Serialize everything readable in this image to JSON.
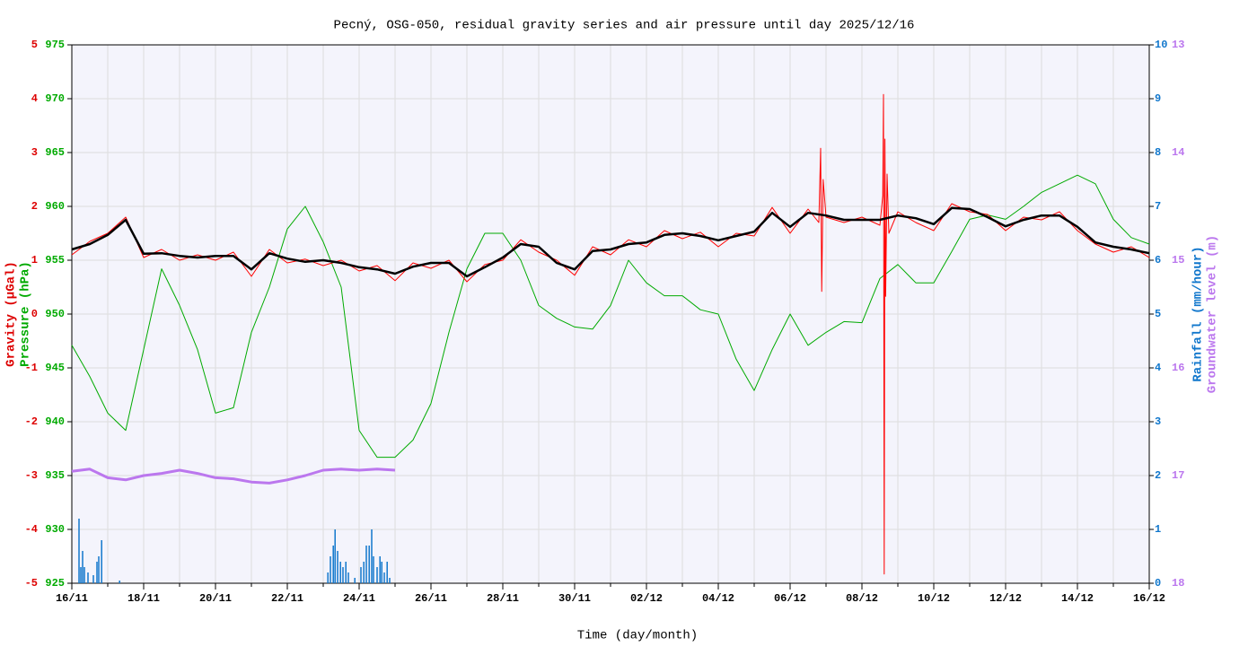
{
  "chart_data": {
    "type": "line",
    "title": "Pecný, OSG-050, residual gravity series and air pressure until day 2025/12/16",
    "xlabel": "Time (day/month)",
    "xlim": [
      0,
      30
    ],
    "xticks": [
      {
        "value": 0,
        "label": "16/11"
      },
      {
        "value": 2,
        "label": "18/11"
      },
      {
        "value": 4,
        "label": "20/11"
      },
      {
        "value": 6,
        "label": "22/11"
      },
      {
        "value": 8,
        "label": "24/11"
      },
      {
        "value": 10,
        "label": "26/11"
      },
      {
        "value": 12,
        "label": "28/11"
      },
      {
        "value": 14,
        "label": "30/11"
      },
      {
        "value": 16,
        "label": "02/12"
      },
      {
        "value": 18,
        "label": "04/12"
      },
      {
        "value": 20,
        "label": "06/12"
      },
      {
        "value": 22,
        "label": "08/12"
      },
      {
        "value": 24,
        "label": "10/12"
      },
      {
        "value": 26,
        "label": "12/12"
      },
      {
        "value": 28,
        "label": "14/12"
      },
      {
        "value": 30,
        "label": "16/12"
      }
    ],
    "xminorticks": [
      0,
      1,
      2,
      3,
      4,
      5,
      6,
      7,
      8,
      9,
      10,
      11,
      12,
      13,
      14,
      15,
      16,
      17,
      18,
      19,
      20,
      21,
      22,
      23,
      24,
      25,
      26,
      27,
      28,
      29,
      30
    ],
    "grid": true,
    "ylabel": "Gravity (µGal)",
    "ycolor": "#dd0000",
    "ylim": [
      -5,
      5
    ],
    "yticks": [
      -5,
      -4,
      -3,
      -2,
      -1,
      0,
      1,
      2,
      3,
      4,
      5
    ],
    "y2label": "Pressure (hPa)",
    "y2color": "#00aa00",
    "y2lim": [
      925,
      975
    ],
    "y2ticks": [
      925,
      930,
      935,
      940,
      945,
      950,
      955,
      960,
      965,
      970,
      975
    ],
    "y3label": "Rainfall (mm/hour)",
    "y3color": "#1177cc",
    "y3lim": [
      0,
      10
    ],
    "y3ticks": [
      0,
      1,
      2,
      3,
      4,
      5,
      6,
      7,
      8,
      9,
      10
    ],
    "y4label": "Groundwater level (m)",
    "y4color": "#bb77ee",
    "y4lim": [
      18,
      13
    ],
    "y4ticks": [
      13,
      14,
      15,
      16,
      17,
      18
    ],
    "x": [
      0,
      0.5,
      1,
      1.5,
      2,
      2.5,
      3,
      3.5,
      4,
      4.5,
      5,
      5.5,
      6,
      6.5,
      7,
      7.5,
      8,
      8.5,
      9,
      9.5,
      10,
      10.5,
      11,
      11.5,
      12,
      12.5,
      13,
      13.5,
      14,
      14.5,
      15,
      15.5,
      16,
      16.5,
      17,
      17.5,
      18,
      18.5,
      19,
      19.5,
      20,
      20.5,
      21,
      21.5,
      22,
      22.5,
      23,
      23.5,
      24,
      24.5,
      25,
      25.5,
      26,
      26.5,
      27,
      27.5,
      28,
      28.5,
      29,
      29.5,
      30
    ],
    "series": [
      {
        "kind": "bar",
        "axis": "y3",
        "color": "#1177cc",
        "x": [
          0.2,
          0.25,
          0.3,
          0.35,
          0.45,
          0.6,
          0.7,
          0.75,
          0.83,
          1.33,
          7.13,
          7.2,
          7.28,
          7.33,
          7.4,
          7.48,
          7.55,
          7.63,
          7.7,
          7.88,
          8.05,
          8.13,
          8.2,
          8.28,
          8.35,
          8.4,
          8.5,
          8.58,
          8.63,
          8.7,
          8.78,
          8.85
        ],
        "values": [
          1.2,
          0.3,
          0.6,
          0.3,
          0.2,
          0.15,
          0.4,
          0.5,
          0.8,
          0.05,
          0.2,
          0.5,
          0.7,
          1.0,
          0.6,
          0.4,
          0.3,
          0.4,
          0.2,
          0.1,
          0.3,
          0.4,
          0.7,
          0.7,
          1.0,
          0.5,
          0.3,
          0.5,
          0.4,
          0.2,
          0.4,
          0.1
        ]
      },
      {
        "kind": "line",
        "axis": "y4",
        "color": "#bb77ee",
        "width": 3,
        "x": [
          0,
          0.5,
          1,
          1.5,
          2,
          2.5,
          3,
          3.5,
          4,
          4.5,
          5,
          5.5,
          6,
          6.5,
          7,
          7.5,
          8,
          8.5,
          9
        ],
        "values": [
          16.96,
          16.94,
          17.02,
          17.04,
          17.0,
          16.98,
          16.95,
          16.98,
          17.02,
          17.03,
          17.06,
          17.07,
          17.04,
          17.0,
          16.95,
          16.94,
          16.95,
          16.94,
          16.95
        ]
      },
      {
        "kind": "line",
        "axis": "y2",
        "color": "#00aa00",
        "width": 1,
        "values": [
          947.1,
          944.2,
          940.8,
          939.2,
          946.7,
          954.2,
          950.8,
          946.7,
          940.8,
          941.3,
          948.3,
          952.5,
          957.9,
          960.0,
          956.7,
          952.5,
          939.2,
          936.7,
          936.7,
          938.3,
          941.7,
          948.3,
          954.2,
          957.5,
          957.5,
          955.0,
          950.8,
          949.6,
          948.8,
          948.6,
          950.8,
          955.0,
          952.9,
          951.7,
          951.7,
          950.4,
          950.0,
          945.8,
          942.9,
          946.7,
          950.0,
          947.1,
          948.3,
          949.3,
          949.2,
          953.3,
          954.6,
          952.9,
          952.9,
          955.8,
          958.8,
          959.2,
          958.8,
          960.0,
          961.3,
          962.1,
          962.9,
          962.1,
          958.8,
          957.1,
          956.5
        ]
      },
      {
        "kind": "line",
        "axis": "y",
        "color": "#ff0000",
        "width": 1,
        "x": [
          0,
          0.5,
          1,
          1.5,
          2,
          2.5,
          3,
          3.5,
          4,
          4.5,
          5,
          5.5,
          6,
          6.5,
          7,
          7.5,
          8,
          8.5,
          9,
          9.5,
          10,
          10.5,
          11,
          11.5,
          12,
          12.5,
          13,
          13.5,
          14,
          14.5,
          15,
          15.5,
          16,
          16.5,
          17,
          17.5,
          18,
          18.5,
          19,
          19.5,
          20,
          20.5,
          20.8,
          20.85,
          20.88,
          20.92,
          21,
          21.5,
          22,
          22.5,
          22.58,
          22.6,
          22.62,
          22.64,
          22.66,
          22.7,
          22.75,
          23,
          23.5,
          24,
          24.5,
          25,
          25.5,
          26,
          26.5,
          27,
          27.5,
          28,
          28.5,
          29,
          29.5,
          30
        ],
        "values": [
          1.1,
          1.35,
          1.5,
          1.8,
          1.05,
          1.2,
          1.0,
          1.1,
          1.0,
          1.15,
          0.7,
          1.2,
          0.95,
          1.02,
          0.9,
          1.0,
          0.8,
          0.9,
          0.62,
          0.95,
          0.85,
          1.0,
          0.6,
          0.92,
          1.0,
          1.38,
          1.15,
          1.0,
          0.72,
          1.25,
          1.1,
          1.38,
          1.25,
          1.55,
          1.4,
          1.52,
          1.25,
          1.5,
          1.45,
          1.98,
          1.5,
          1.95,
          1.7,
          3.08,
          0.42,
          2.5,
          1.8,
          1.7,
          1.8,
          1.65,
          2.2,
          4.08,
          -4.83,
          3.25,
          0.33,
          2.6,
          1.5,
          1.9,
          1.7,
          1.55,
          2.05,
          1.9,
          1.85,
          1.55,
          1.8,
          1.75,
          1.9,
          1.55,
          1.3,
          1.15,
          1.25,
          1.05
        ]
      },
      {
        "kind": "line",
        "axis": "y",
        "color": "#000000",
        "width": 2.5,
        "values": [
          1.2,
          1.3,
          1.47,
          1.75,
          1.12,
          1.13,
          1.08,
          1.05,
          1.08,
          1.08,
          0.83,
          1.13,
          1.03,
          0.97,
          1.0,
          0.95,
          0.87,
          0.83,
          0.75,
          0.88,
          0.95,
          0.95,
          0.7,
          0.87,
          1.05,
          1.3,
          1.25,
          0.95,
          0.83,
          1.17,
          1.2,
          1.3,
          1.33,
          1.47,
          1.5,
          1.45,
          1.37,
          1.45,
          1.53,
          1.88,
          1.62,
          1.88,
          1.83,
          1.75,
          1.75,
          1.75,
          1.83,
          1.78,
          1.67,
          1.97,
          1.95,
          1.8,
          1.63,
          1.75,
          1.83,
          1.83,
          1.62,
          1.33,
          1.25,
          1.2,
          1.13
        ]
      }
    ]
  }
}
